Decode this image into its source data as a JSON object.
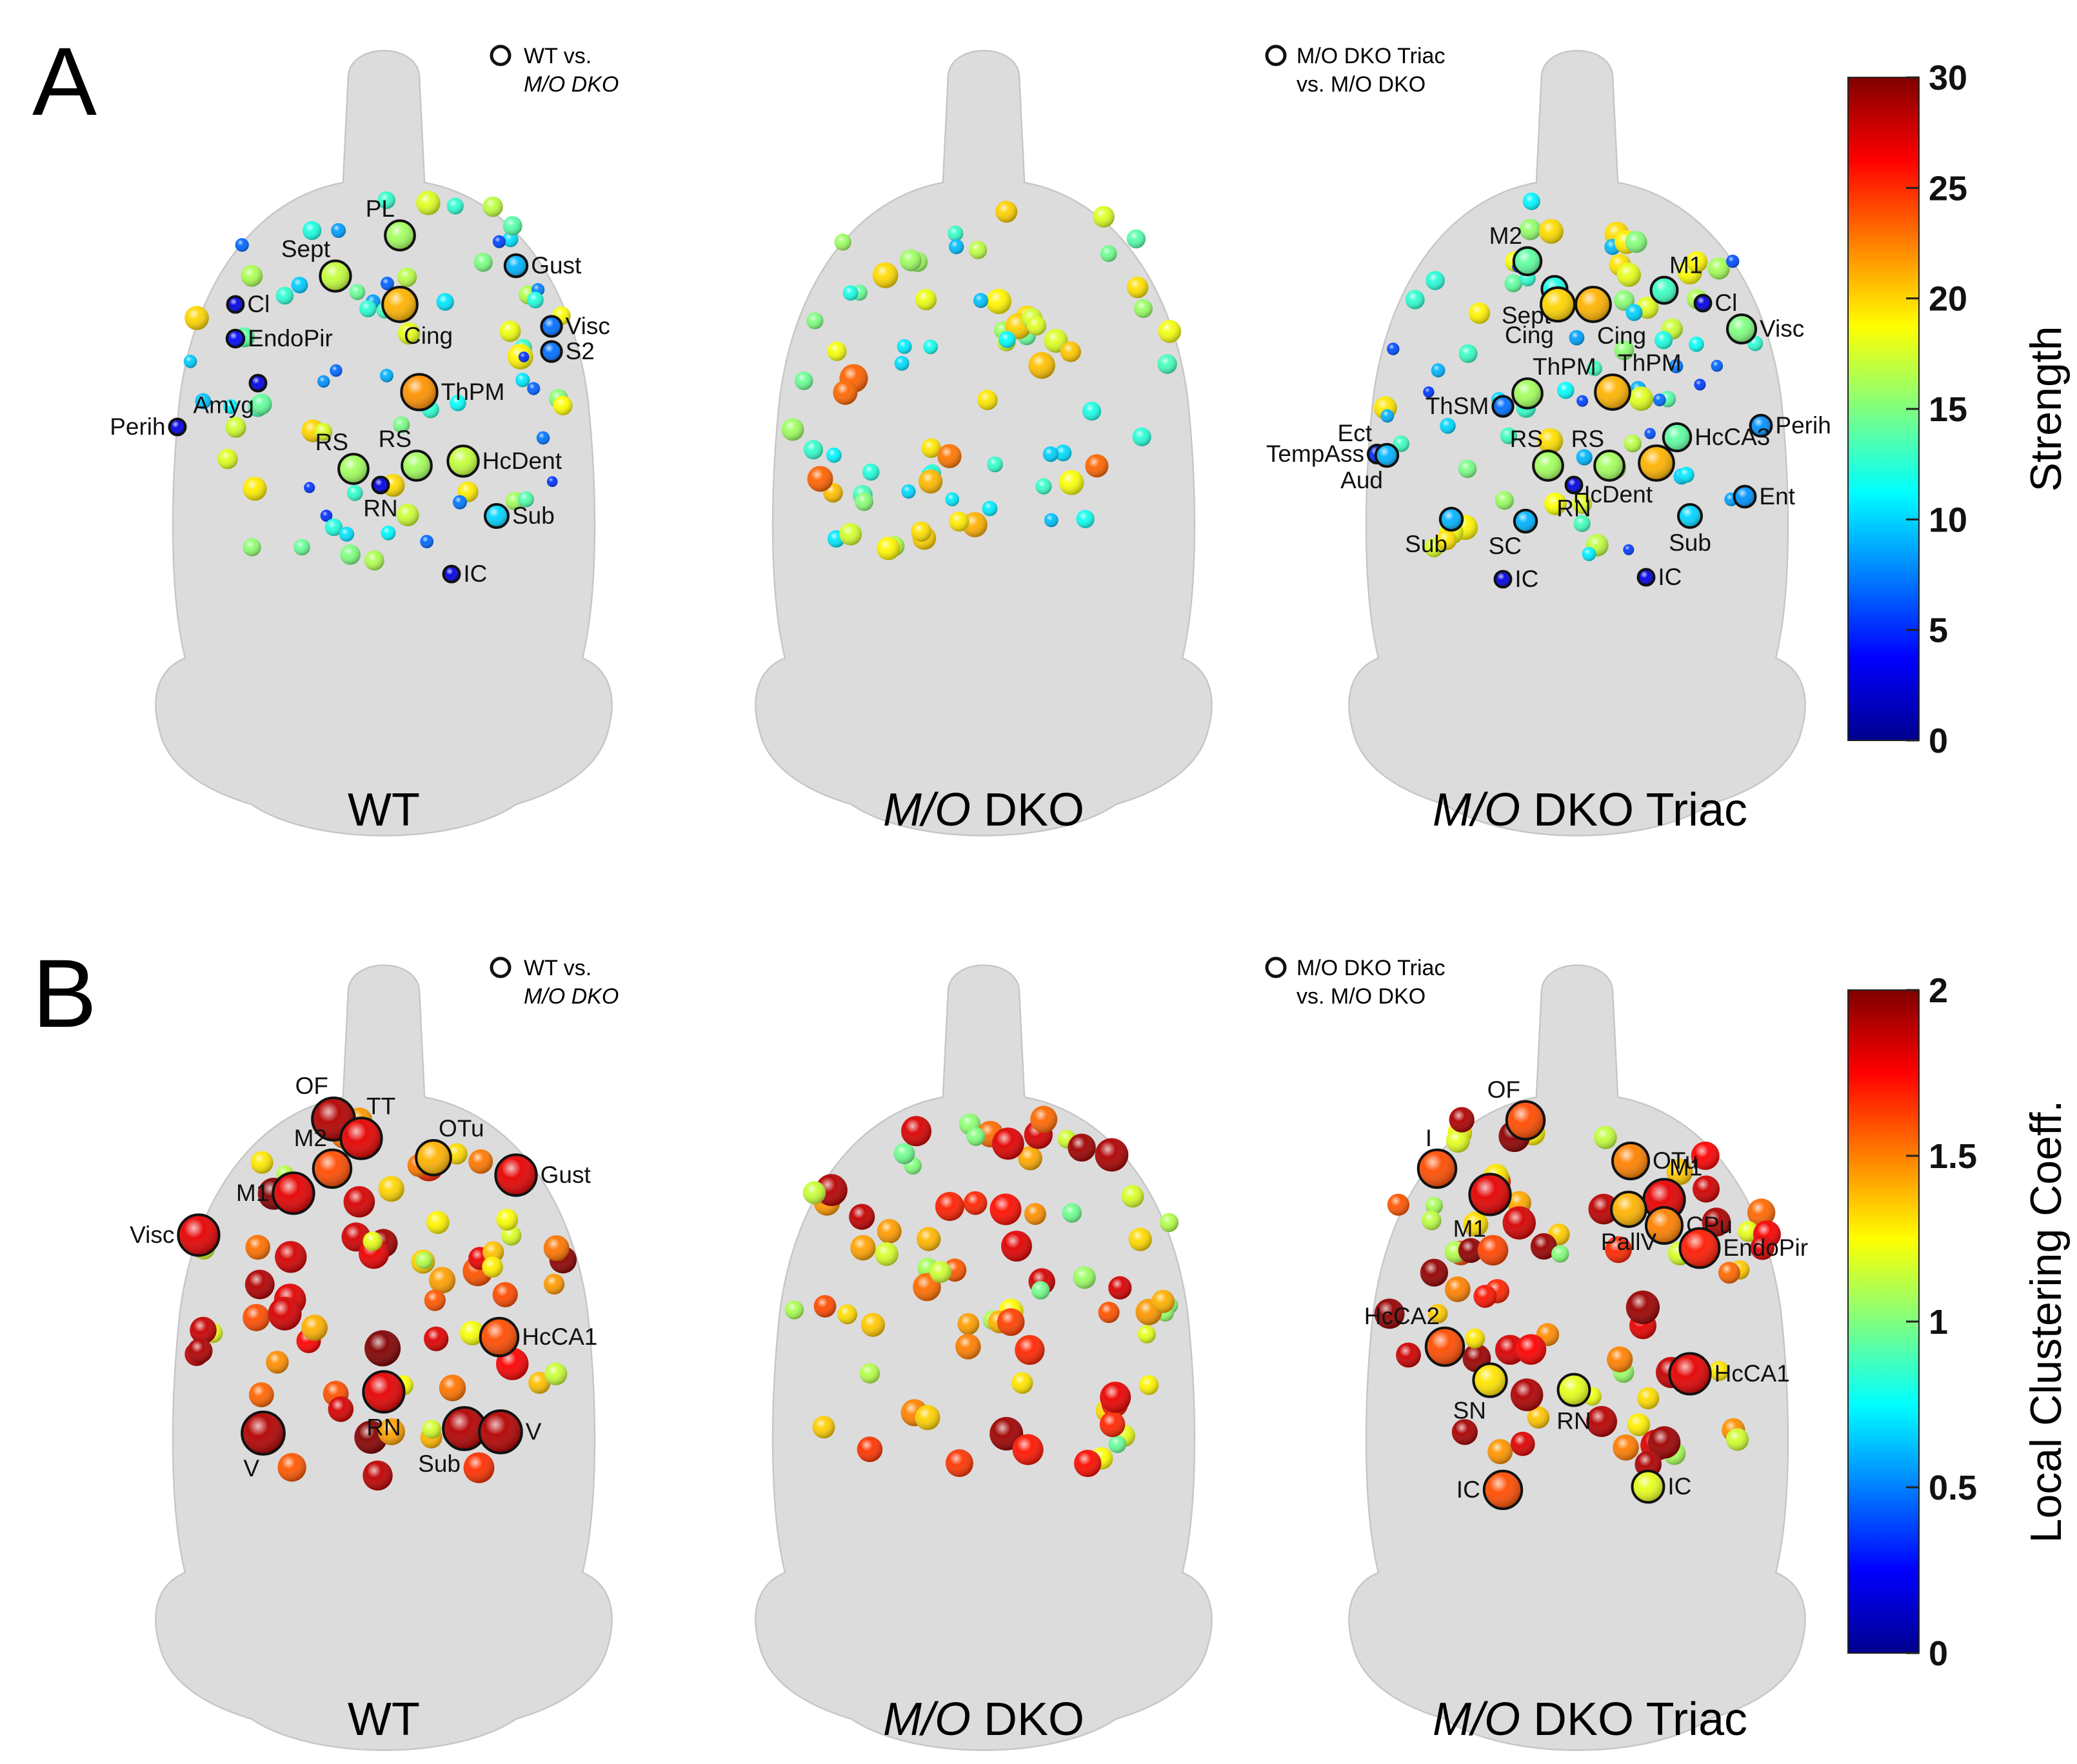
{
  "figure": {
    "panels": [
      {
        "letter": "A",
        "legend": {
          "line1": "WT vs.",
          "line2": "M/O DKO"
        },
        "legend3": {
          "line1": "M/O DKO Triac",
          "line2": "vs. M/O DKO"
        },
        "captions": [
          {
            "italic": "",
            "plain": "WT"
          },
          {
            "italic": "M/O",
            "plain": " DKO"
          },
          {
            "italic": "M/O",
            "plain": " DKO Triac"
          }
        ],
        "colorbar": {
          "title": "Strength",
          "min": 0,
          "max": 30,
          "ticks": [
            "0",
            "5",
            "10",
            "15",
            "20",
            "25",
            "30"
          ]
        },
        "brains": [
          {
            "name": "WT",
            "nodes": [
              {
                "label": "PL",
                "v": 16
              },
              {
                "label": "Gust",
                "v": 9
              },
              {
                "label": "Cl",
                "v": 3
              },
              {
                "label": "Sept",
                "v": 17
              },
              {
                "label": "Cing",
                "v": 21
              },
              {
                "label": "EndoPir",
                "v": 4
              },
              {
                "label": "Visc",
                "v": 7
              },
              {
                "label": "S2",
                "v": 7
              },
              {
                "label": "Amyg",
                "v": 3
              },
              {
                "label": "ThPM",
                "v": 22
              },
              {
                "label": "Perih",
                "v": 3
              },
              {
                "label": "RS",
                "v": 16
              },
              {
                "label": "RS",
                "v": 16
              },
              {
                "label": "HcDent",
                "v": 17
              },
              {
                "label": "RN",
                "v": 3
              },
              {
                "label": "Sub",
                "v": 10
              },
              {
                "label": "IC",
                "v": 3
              }
            ]
          },
          {
            "name": "M/O DKO",
            "nodes": []
          },
          {
            "name": "M/O DKO Triac",
            "nodes": [
              {
                "label": "M2",
                "v": 14
              },
              {
                "label": "M1",
                "v": 13
              },
              {
                "label": "Sept",
                "v": 12
              },
              {
                "label": "Cl",
                "v": 3
              },
              {
                "label": "Cing",
                "v": 20
              },
              {
                "label": "Cing",
                "v": 21
              },
              {
                "label": "Visc",
                "v": 15
              },
              {
                "label": "ThPM",
                "v": 16
              },
              {
                "label": "ThPM",
                "v": 21
              },
              {
                "label": "Perih",
                "v": 8
              },
              {
                "label": "ThSM",
                "v": 7
              },
              {
                "label": "Ect",
                "v": 5
              },
              {
                "label": "TempAss",
                "v": 5
              },
              {
                "label": "Aud",
                "v": 9
              },
              {
                "label": "RS",
                "v": 16
              },
              {
                "label": "RS",
                "v": 16
              },
              {
                "label": "HcCA3",
                "v": 14
              },
              {
                "label": "HcDent",
                "v": 21
              },
              {
                "label": "RN",
                "v": 3
              },
              {
                "label": "Ent",
                "v": 8
              },
              {
                "label": "Sub",
                "v": 9
              },
              {
                "label": "SC",
                "v": 9
              },
              {
                "label": "Sub",
                "v": 10
              },
              {
                "label": "IC",
                "v": 3
              },
              {
                "label": "IC",
                "v": 3
              }
            ]
          }
        ]
      },
      {
        "letter": "B",
        "legend": {
          "line1": "WT vs.",
          "line2": "M/O DKO"
        },
        "legend3": {
          "line1": "M/O DKO Triac",
          "line2": "vs. M/O DKO"
        },
        "captions": [
          {
            "italic": "",
            "plain": "WT"
          },
          {
            "italic": "M/O",
            "plain": " DKO"
          },
          {
            "italic": "M/O",
            "plain": " DKO Triac"
          }
        ],
        "colorbar": {
          "title": "Local Clustering Coeff.",
          "min": 0,
          "max": 2,
          "ticks": [
            "0",
            "0.5",
            "1",
            "1.5",
            "2"
          ]
        },
        "brains": [
          {
            "name": "WT",
            "nodes": [
              {
                "label": "OF",
                "v": 1.9
              },
              {
                "label": "TT",
                "v": 1.8
              },
              {
                "label": "OTu",
                "v": 1.4
              },
              {
                "label": "M2",
                "v": 1.6
              },
              {
                "label": "Gust",
                "v": 1.8
              },
              {
                "label": "M1",
                "v": 1.8
              },
              {
                "label": "Visc",
                "v": 1.8
              },
              {
                "label": "HcCA1",
                "v": 1.6
              },
              {
                "label": "RN",
                "v": 1.8
              },
              {
                "label": "V",
                "v": 1.9
              },
              {
                "label": "Sub",
                "v": 1.9
              },
              {
                "label": "V",
                "v": 1.9
              }
            ]
          },
          {
            "name": "M/O DKO",
            "nodes": []
          },
          {
            "name": "M/O DKO Triac",
            "nodes": [
              {
                "label": "OF",
                "v": 1.6
              },
              {
                "label": "OTu",
                "v": 1.5
              },
              {
                "label": "I",
                "v": 1.6
              },
              {
                "label": "M1",
                "v": 1.8
              },
              {
                "label": "M1",
                "v": 1.8
              },
              {
                "label": "CPu",
                "v": 1.5
              },
              {
                "label": "PallV",
                "v": 1.4
              },
              {
                "label": "EndoPir",
                "v": 1.7
              },
              {
                "label": "HcCA2",
                "v": 1.6
              },
              {
                "label": "SN",
                "v": 1.3
              },
              {
                "label": "RN",
                "v": 1.2
              },
              {
                "label": "HcCA1",
                "v": 1.8
              },
              {
                "label": "IC",
                "v": 1.6
              },
              {
                "label": "IC",
                "v": 1.2
              }
            ]
          }
        ]
      }
    ],
    "colors": {
      "brain_fill": "#dcdcdc",
      "brain_stroke": "#c6c6c6",
      "highlight_ring": "#111111"
    }
  }
}
